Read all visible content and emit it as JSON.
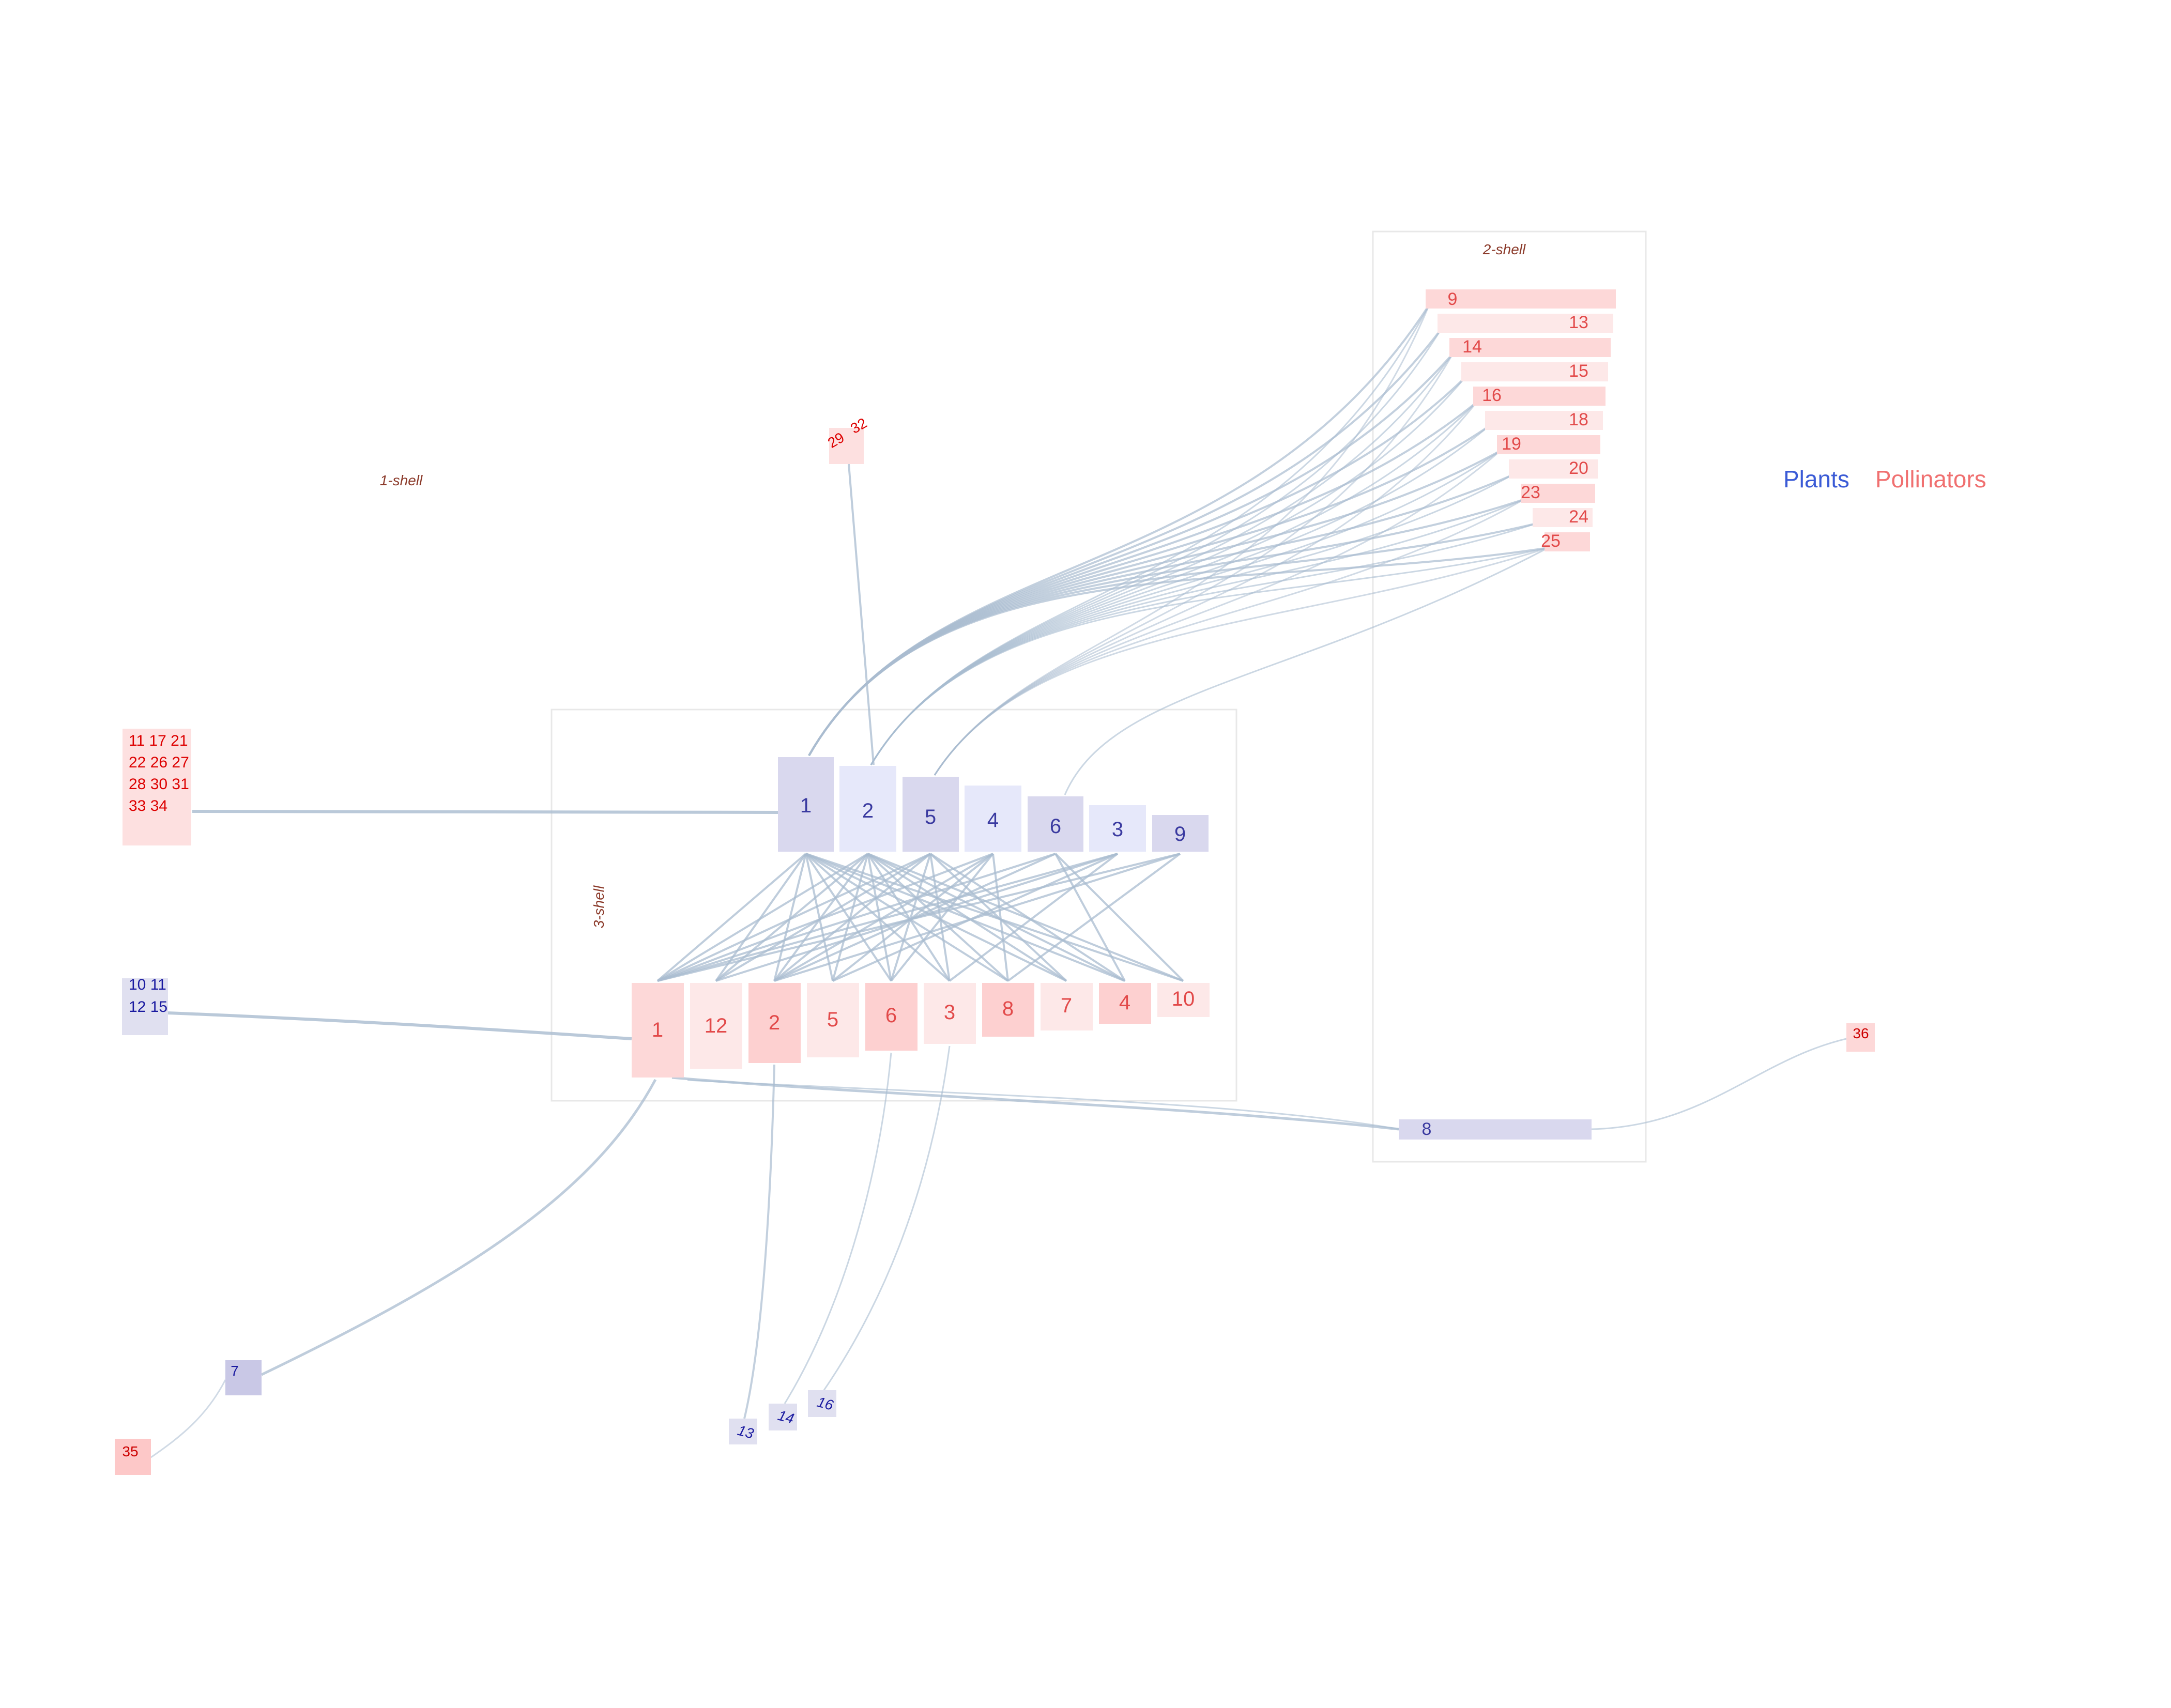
{
  "legend": {
    "plants_label": "Plants",
    "pollinators_label": "Pollinators"
  },
  "colors": {
    "plant_text": "#3a3aa0",
    "pollinator_text": "#e24a4a",
    "link": "#a9bcd0",
    "shell_box": "#e6e6e6",
    "shell_label": "#8b3a2a",
    "legend_plants": "#3b5bd6",
    "legend_pollinators": "#f07070"
  },
  "shells": {
    "one": "1-shell",
    "two": "2-shell",
    "three": "3-shell"
  },
  "core_plants": [
    "1",
    "2",
    "5",
    "4",
    "6",
    "3",
    "9"
  ],
  "core_pollinators": [
    "1",
    "12",
    "2",
    "5",
    "6",
    "3",
    "8",
    "7",
    "4",
    "10"
  ],
  "shell2_pollinators": [
    "9",
    "13",
    "14",
    "15",
    "16",
    "18",
    "19",
    "20",
    "23",
    "24",
    "25"
  ],
  "shell2_plant": "8",
  "pollinator_cluster": [
    "11 17 21",
    "22 26 27",
    "28 30 31",
    "33 34"
  ],
  "plant_cluster": [
    "10 11",
    "12 15"
  ],
  "top_pollinator_pair": [
    "29",
    "32"
  ],
  "outlier_plants": {
    "p7": "7",
    "p13": "13",
    "p14": "14",
    "p16": "16"
  },
  "outlier_pollinators": {
    "q35": "35",
    "q36": "36"
  }
}
